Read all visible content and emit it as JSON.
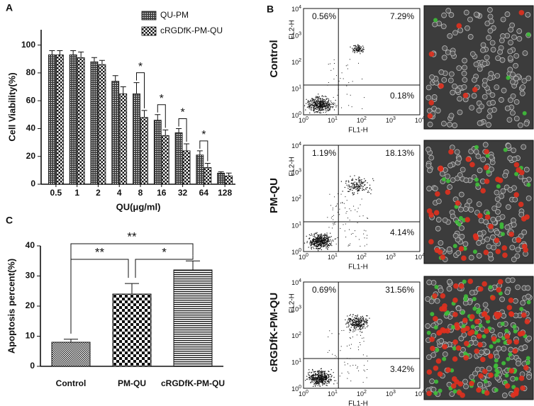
{
  "panels": {
    "a": "A",
    "b": "B",
    "c": "C"
  },
  "chart_data": [
    {
      "type": "grouped-bar",
      "x_label": "QU(μg/ml)",
      "y_label": "Cell Viability(%)",
      "categories": [
        "0.5",
        "1",
        "2",
        "4",
        "8",
        "16",
        "32",
        "64",
        "128"
      ],
      "series": [
        {
          "name": "QU-PM",
          "pattern": "dots",
          "values": [
            93,
            93,
            88,
            74,
            65,
            46,
            37,
            21,
            8
          ],
          "errors": [
            3,
            3,
            3,
            4,
            8,
            4,
            3,
            3,
            1
          ]
        },
        {
          "name": "cRGDfK-PM-QU",
          "pattern": "checker",
          "values": [
            93,
            91,
            86,
            65,
            48,
            35,
            24,
            12,
            6
          ],
          "errors": [
            3,
            4,
            3,
            5,
            5,
            4,
            5,
            3,
            2
          ]
        }
      ],
      "significance": [
        {
          "label": "*",
          "category": "8"
        },
        {
          "label": "*",
          "category": "16"
        },
        {
          "label": "*",
          "category": "32"
        },
        {
          "label": "*",
          "category": "64"
        }
      ],
      "ylim": [
        0,
        111
      ],
      "yticks": [
        0,
        20,
        40,
        60,
        80,
        100
      ]
    },
    {
      "type": "bar",
      "y_label": "Apoptosis percent(%)",
      "categories": [
        "Control",
        "PM-QU",
        "cRGDfK-PM-QU"
      ],
      "values": [
        8,
        24,
        32
      ],
      "errors": [
        1,
        3.5,
        3
      ],
      "patterns": [
        "fine",
        "bigchecker",
        "hlines"
      ],
      "significance": [
        {
          "label": "**",
          "from": "Control",
          "to": "cRGDfK-PM-QU"
        },
        {
          "label": "**",
          "from": "Control",
          "to": "PM-QU"
        },
        {
          "label": "*",
          "from": "PM-QU",
          "to": "cRGDfK-PM-QU"
        }
      ],
      "ylim": [
        0,
        40
      ],
      "yticks": [
        0,
        10,
        20,
        30,
        40
      ]
    }
  ],
  "flow": {
    "x_label": "FL1-H",
    "y_label": "FL2-H",
    "tick_base": "10",
    "tick_exponents": [
      "0",
      "1",
      "2",
      "3",
      "4"
    ],
    "rows": [
      {
        "name": "Control",
        "upper_left": "0.56%",
        "upper_right": "7.29%",
        "lower_right": "0.18%"
      },
      {
        "name": "PM-QU",
        "upper_left": "1.19%",
        "upper_right": "18.13%",
        "lower_right": "4.14%"
      },
      {
        "name": "cRGDfK-PM-QU",
        "upper_left": "0.69%",
        "upper_right": "31.56%",
        "lower_right": "3.42%"
      }
    ]
  }
}
